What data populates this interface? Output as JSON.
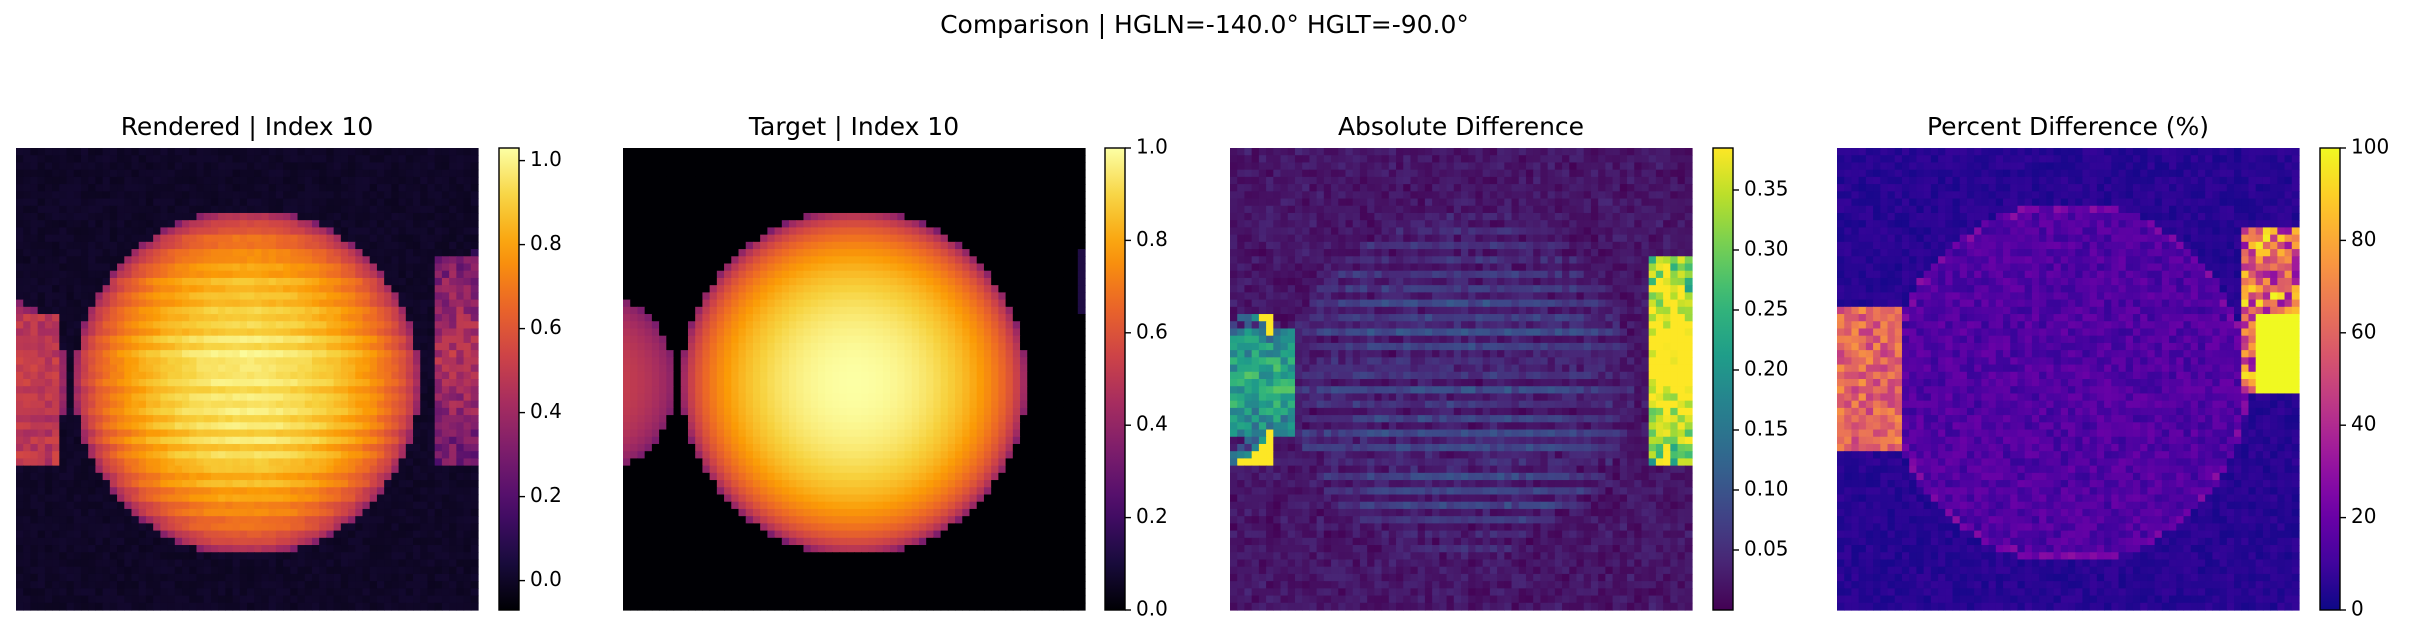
{
  "figure": {
    "suptitle": "Comparison | HGLN=-140.0° HGLT=-90.0°"
  },
  "chart_data": [
    {
      "type": "heatmap",
      "title": "Rendered | Index 10",
      "colormap": "inferno",
      "clim": [
        -0.07,
        1.03
      ],
      "colorbar_ticks": [
        "0.0",
        "0.2",
        "0.4",
        "0.6",
        "0.8",
        "1.0"
      ],
      "colorbar_tick_values": [
        0.0,
        0.2,
        0.4,
        0.6,
        0.8,
        1.0
      ],
      "grid_size": 64,
      "content": "Bright sphere centred slightly left with horizontal striping; partial bright lobe on left edge and faint ring on right edge"
    },
    {
      "type": "heatmap",
      "title": "Target | Index 10",
      "colormap": "inferno",
      "clim": [
        0.0,
        1.0
      ],
      "colorbar_ticks": [
        "0.0",
        "0.2",
        "0.4",
        "0.6",
        "0.8",
        "1.0"
      ],
      "colorbar_tick_values": [
        0.0,
        0.2,
        0.4,
        0.6,
        0.8,
        1.0
      ],
      "grid_size": 64,
      "content": "Smooth bright sphere with limb darkening, partial sphere on left edge, ring on right edge"
    },
    {
      "type": "heatmap",
      "title": "Absolute Difference",
      "colormap": "viridis",
      "clim": [
        0.0,
        0.385
      ],
      "colorbar_ticks": [
        "0.05",
        "0.10",
        "0.15",
        "0.20",
        "0.25",
        "0.30",
        "0.35"
      ],
      "colorbar_tick_values": [
        0.05,
        0.1,
        0.15,
        0.2,
        0.25,
        0.3,
        0.35
      ],
      "grid_size": 64,
      "content": "Low difference everywhere except the left and right edges where values reach ~0.38"
    },
    {
      "type": "heatmap",
      "title": "Percent Difference (%)",
      "colormap": "plasma",
      "clim": [
        0,
        100
      ],
      "colorbar_ticks": [
        "0",
        "20",
        "40",
        "60",
        "80",
        "100"
      ],
      "colorbar_tick_values": [
        0,
        20,
        40,
        60,
        80,
        100
      ],
      "grid_size": 64,
      "content": "Mostly dark blue; sphere outline faintly visible; left edge ~60%, right edge saturated at 100%"
    }
  ]
}
